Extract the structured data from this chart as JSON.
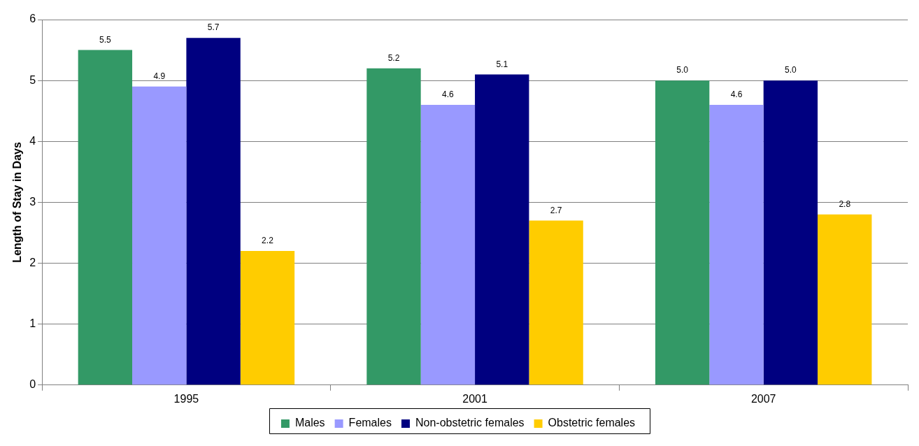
{
  "chart_data": {
    "type": "bar",
    "ylabel": "Length of Stay in Days",
    "categories": [
      "1995",
      "2001",
      "2007"
    ],
    "series": [
      {
        "name": "Males",
        "color": "#339966",
        "values": [
          5.5,
          5.2,
          5.0
        ],
        "value_labels": [
          "5.5",
          "5.2",
          "5.0"
        ]
      },
      {
        "name": "Females",
        "color": "#9999ff",
        "values": [
          4.9,
          4.6,
          4.6
        ],
        "value_labels": [
          "4.9",
          "4.6",
          "4.6"
        ]
      },
      {
        "name": "Non-obstetric females",
        "color": "#000080",
        "values": [
          5.7,
          5.1,
          5.0
        ],
        "value_labels": [
          "5.7",
          "5.1",
          "5.0"
        ]
      },
      {
        "name": "Obstetric females",
        "color": "#ffcc00",
        "values": [
          2.2,
          2.7,
          2.8
        ],
        "value_labels": [
          "2.2",
          "2.7",
          "2.8"
        ]
      }
    ],
    "ylim": [
      0,
      6
    ],
    "yticks": [
      0,
      1,
      2,
      3,
      4,
      5,
      6
    ],
    "grid": "y",
    "legend": "bottom"
  }
}
